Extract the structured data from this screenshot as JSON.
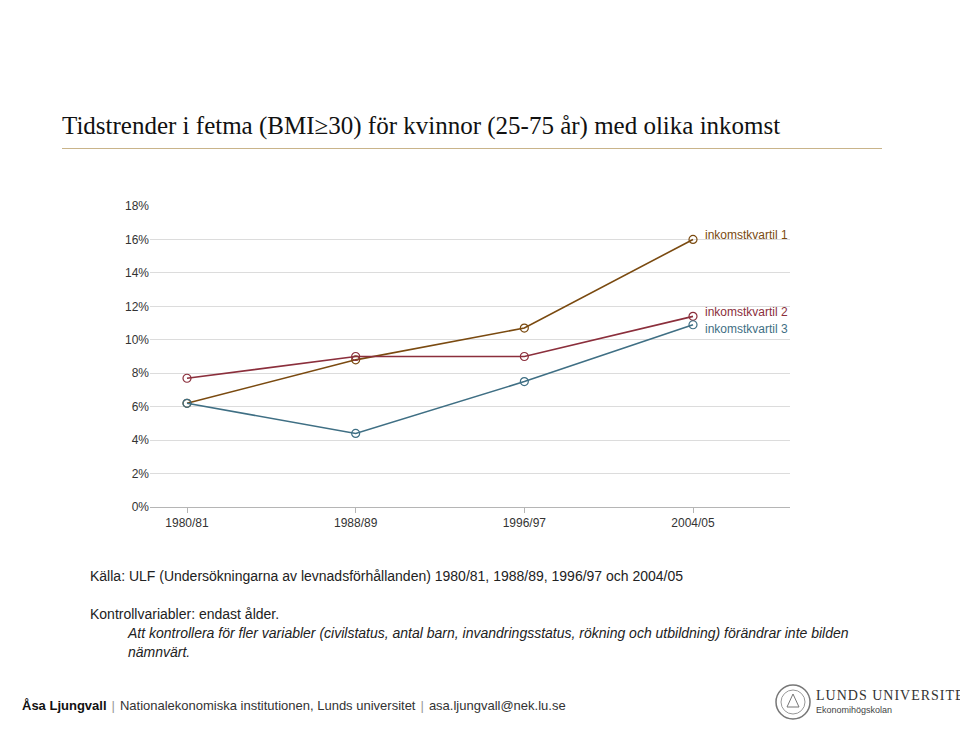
{
  "chart_data": {
    "type": "line",
    "title": "Tidstrender i fetma (BMI≥30) för kvinnor (25-75 år) med olika inkomst",
    "categories": [
      "1980/81",
      "1988/89",
      "1996/97",
      "2004/05"
    ],
    "series": [
      {
        "name": "inkomstkvartil 1",
        "color": "#7a4a10",
        "values": [
          6.2,
          8.8,
          10.7,
          16.0
        ]
      },
      {
        "name": "inkomstkvartil 2",
        "color": "#8b2f3c",
        "values": [
          7.7,
          9.0,
          9.0,
          11.4
        ]
      },
      {
        "name": "inkomstkvartil 3",
        "color": "#3f6f84",
        "values": [
          6.2,
          4.4,
          7.5,
          10.9
        ]
      }
    ],
    "ylim": [
      0,
      18
    ],
    "yticks": [
      {
        "value": 0,
        "label": "0%"
      },
      {
        "value": 2,
        "label": "2%"
      },
      {
        "value": 4,
        "label": "4%"
      },
      {
        "value": 6,
        "label": "6%"
      },
      {
        "value": 8,
        "label": "8%"
      },
      {
        "value": 10,
        "label": "10%"
      },
      {
        "value": 12,
        "label": "12%"
      },
      {
        "value": 14,
        "label": "14%"
      },
      {
        "value": 16,
        "label": "16%"
      },
      {
        "value": 18,
        "label": "18%"
      }
    ],
    "grid": true,
    "marker": "circle-open",
    "line_style": "solid"
  },
  "slide": {
    "source": "Källa: ULF (Undersökningarna av levnadsförhållanden) 1980/81, 1988/89, 1996/97 och 2004/05",
    "controls": "Kontrollvariabler: endast ålder.",
    "note": "Att kontrollera för fler variabler (civilstatus, antal barn, invandringsstatus, rökning och utbildning) förändrar inte bilden nämnvärt.",
    "footer": [
      "Åsa Ljungvall",
      "Nationalekonomiska institutionen, Lunds universitet",
      "asa.ljungvall@nek.lu.se"
    ],
    "separator": "|",
    "logo": {
      "name": "LUNDS UNIVERSITET",
      "unit": "Ekonomihögskolan"
    }
  }
}
